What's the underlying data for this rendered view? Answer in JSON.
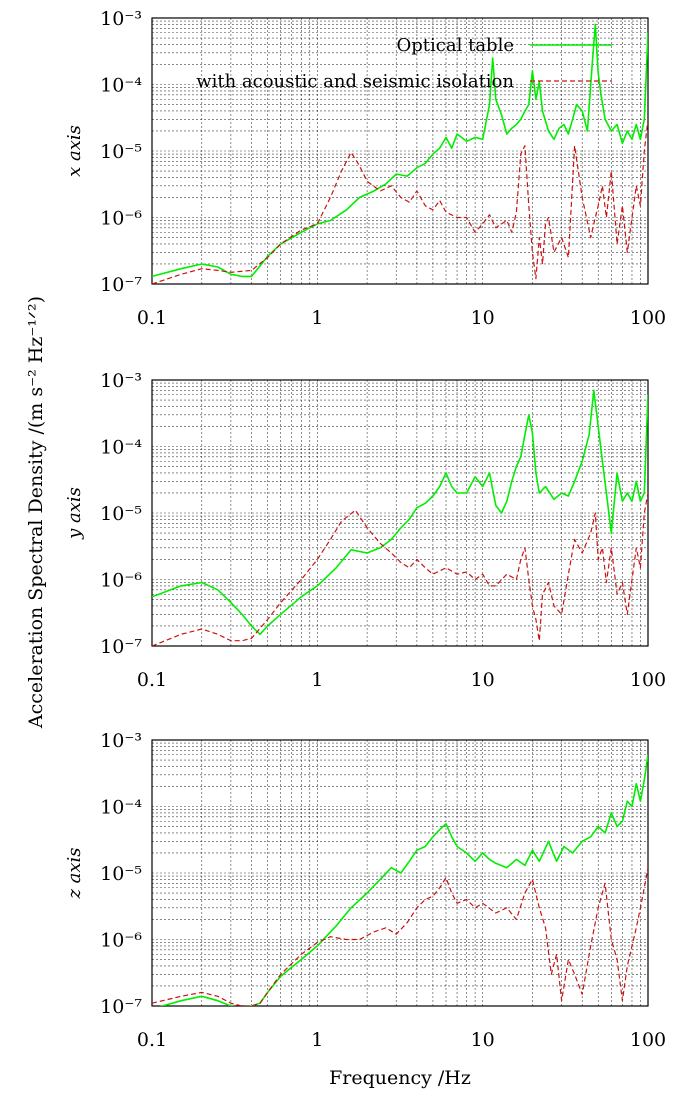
{
  "ylabel_global": "Acceleration Spectral Density /(m s⁻² Hz⁻¹ᐟ²)",
  "ylabel_global_display": "Acceleration Spectral Density /(m s⁻² Hz⁻¹ᐟ²)",
  "xlabel_global": "Frequency /Hz",
  "colors": {
    "optical": "#00ee00",
    "isolation": "#cc1111",
    "grid": "#000000"
  },
  "chart_data": [
    {
      "type": "line",
      "panel_label": "x axis",
      "xscale": "log",
      "yscale": "log",
      "xlim": [
        0.1,
        100
      ],
      "ylim": [
        1e-07,
        0.001
      ],
      "x_ticks": [
        "0.1",
        "1",
        "10",
        "100"
      ],
      "y_ticks": [
        "10⁻⁷",
        "10⁻⁶",
        "10⁻⁵",
        "10⁻⁴",
        "10⁻³"
      ],
      "grid": true,
      "legend_position": "top-right",
      "series": [
        {
          "name": "Optical table",
          "style": "solid",
          "x": [
            0.1,
            0.15,
            0.2,
            0.25,
            0.3,
            0.35,
            0.4,
            0.5,
            0.6,
            0.8,
            1.0,
            1.2,
            1.5,
            1.8,
            2.2,
            2.6,
            3.0,
            3.5,
            4.0,
            4.5,
            5.0,
            5.5,
            6.0,
            6.5,
            7.0,
            8.0,
            9.0,
            10.0,
            11.0,
            11.5,
            12.0,
            13.0,
            14.0,
            15.0,
            16.0,
            17.0,
            18.0,
            19.0,
            20.0,
            21.0,
            22.0,
            23.0,
            25.0,
            27.0,
            29.0,
            31.0,
            33.0,
            35.0,
            37.0,
            40.0,
            43.0,
            46.0,
            48.0,
            50.0,
            52.0,
            55.0,
            60.0,
            65.0,
            70.0,
            75.0,
            80.0,
            85.0,
            90.0,
            95.0,
            100.0
          ],
          "y": [
            1.3e-07,
            1.7e-07,
            2e-07,
            1.8e-07,
            1.4e-07,
            1.3e-07,
            1.3e-07,
            2.6e-07,
            4e-07,
            6e-07,
            8e-07,
            9e-07,
            1.3e-06,
            2e-06,
            2.5e-06,
            3.2e-06,
            4.5e-06,
            4.2e-06,
            5.6e-06,
            6.5e-06,
            9e-06,
            1.1e-05,
            1.6e-05,
            1.1e-05,
            1.8e-05,
            1.4e-05,
            1.6e-05,
            1.5e-05,
            5e-05,
            0.00025,
            6e-05,
            3.5e-05,
            1.8e-05,
            2.2e-05,
            2.5e-05,
            3e-05,
            4e-05,
            5e-05,
            0.00016,
            6e-05,
            0.00011,
            4e-05,
            2e-05,
            1.5e-05,
            2.2e-05,
            2.5e-05,
            1.8e-05,
            3e-05,
            5e-05,
            4e-05,
            2e-05,
            0.0002,
            0.0008,
            0.00015,
            7e-05,
            3e-05,
            2e-05,
            2.5e-05,
            1.3e-05,
            2e-05,
            1.5e-05,
            2.5e-05,
            1.5e-05,
            3e-05,
            0.0006
          ]
        },
        {
          "name": "with acoustic and seismic isolation",
          "style": "dashed",
          "x": [
            0.1,
            0.15,
            0.2,
            0.25,
            0.3,
            0.4,
            0.5,
            0.6,
            0.8,
            1.0,
            1.2,
            1.4,
            1.6,
            1.8,
            2.0,
            2.4,
            2.8,
            3.2,
            3.6,
            4.0,
            4.5,
            5.0,
            5.5,
            6.0,
            7.0,
            8.0,
            9.0,
            10.0,
            11.0,
            12.0,
            13.0,
            14.0,
            15.0,
            16.0,
            17.0,
            18.0,
            19.0,
            20.0,
            21.0,
            22.0,
            23.0,
            24.0,
            25.0,
            27.0,
            30.0,
            33.0,
            36.0,
            40.0,
            45.0,
            48.0,
            50.0,
            53.0,
            56.0,
            60.0,
            65.0,
            70.0,
            75.0,
            80.0,
            85.0,
            90.0,
            95.0,
            100.0
          ],
          "y": [
            1e-07,
            1.4e-07,
            1.7e-07,
            1.6e-07,
            1.5e-07,
            1.6e-07,
            2.5e-07,
            4e-07,
            6.5e-07,
            8e-07,
            2e-06,
            5e-06,
            9.5e-06,
            6e-06,
            3.5e-06,
            2.5e-06,
            3e-06,
            2e-06,
            1.7e-06,
            2.5e-06,
            1.5e-06,
            1.3e-06,
            1.8e-06,
            1.2e-06,
            1e-06,
            1e-06,
            6e-07,
            8e-07,
            1.1e-06,
            7e-07,
            8e-07,
            9e-07,
            6e-07,
            1.2e-06,
            9e-06,
            1.2e-05,
            1.5e-06,
            3e-07,
            1.2e-07,
            5e-07,
            2e-07,
            8e-07,
            1e-06,
            3e-07,
            5e-07,
            2.5e-07,
            1.2e-05,
            2e-06,
            5e-07,
            1e-06,
            1.5e-06,
            3e-06,
            1e-06,
            5e-06,
            4e-07,
            1.5e-06,
            3e-07,
            1e-06,
            3e-06,
            1.5e-06,
            1e-05,
            3e-05
          ]
        }
      ]
    },
    {
      "type": "line",
      "panel_label": "y axis",
      "xscale": "log",
      "yscale": "log",
      "xlim": [
        0.1,
        100
      ],
      "ylim": [
        1e-07,
        0.001
      ],
      "x_ticks": [
        "0.1",
        "1",
        "10",
        "100"
      ],
      "y_ticks": [
        "10⁻⁷",
        "10⁻⁶",
        "10⁻⁵",
        "10⁻⁴",
        "10⁻³"
      ],
      "grid": true,
      "series": [
        {
          "name": "Optical table",
          "style": "solid",
          "x": [
            0.1,
            0.15,
            0.2,
            0.25,
            0.3,
            0.35,
            0.4,
            0.45,
            0.5,
            0.6,
            0.8,
            1.0,
            1.3,
            1.6,
            2.0,
            2.4,
            2.8,
            3.2,
            3.6,
            4.0,
            4.5,
            5.0,
            5.5,
            6.0,
            6.5,
            7.0,
            8.0,
            9.0,
            10.0,
            11.0,
            12.0,
            13.0,
            14.0,
            15.0,
            16.0,
            17.0,
            18.0,
            19.0,
            20.0,
            21.0,
            22.0,
            24.0,
            27.0,
            30.0,
            33.0,
            36.0,
            40.0,
            44.0,
            47.0,
            50.0,
            53.0,
            56.0,
            60.0,
            65.0,
            70.0,
            75.0,
            80.0,
            85.0,
            90.0,
            95.0,
            100.0
          ],
          "y": [
            5.5e-07,
            8e-07,
            9e-07,
            7e-07,
            4.5e-07,
            3e-07,
            2e-07,
            1.5e-07,
            2e-07,
            3e-07,
            5.5e-07,
            8e-07,
            1.5e-06,
            2.8e-06,
            2.5e-06,
            3e-06,
            4e-06,
            6e-06,
            8e-06,
            1.2e-05,
            1.4e-05,
            1.8e-05,
            2.5e-05,
            4e-05,
            2.5e-05,
            2e-05,
            2e-05,
            3.5e-05,
            2.5e-05,
            4e-05,
            1.3e-05,
            1e-05,
            1.5e-05,
            3e-05,
            5e-05,
            7e-05,
            0.00015,
            0.0003,
            0.00016,
            4e-05,
            2e-05,
            2.5e-05,
            1.6e-05,
            2e-05,
            1.8e-05,
            3e-05,
            6e-05,
            0.00015,
            0.0007,
            0.0002,
            6e-05,
            2e-05,
            5e-06,
            4e-05,
            1.5e-05,
            2e-05,
            1.5e-05,
            3e-05,
            1.5e-05,
            2e-05,
            0.0006
          ]
        },
        {
          "name": "with acoustic and seismic isolation",
          "style": "dashed",
          "x": [
            0.1,
            0.15,
            0.2,
            0.25,
            0.3,
            0.35,
            0.4,
            0.5,
            0.6,
            0.8,
            1.0,
            1.2,
            1.4,
            1.7,
            2.0,
            2.4,
            2.8,
            3.2,
            3.6,
            4.0,
            4.5,
            5.0,
            6.0,
            7.0,
            8.0,
            9.0,
            10.0,
            11.0,
            12.0,
            14.0,
            16.0,
            17.0,
            18.0,
            19.0,
            20.0,
            21.0,
            22.0,
            23.0,
            25.0,
            27.0,
            30.0,
            33.0,
            36.0,
            40.0,
            45.0,
            48.0,
            50.0,
            53.0,
            56.0,
            60.0,
            65.0,
            70.0,
            75.0,
            80.0,
            85.0,
            90.0,
            95.0,
            100.0
          ],
          "y": [
            1e-07,
            1.5e-07,
            1.8e-07,
            1.5e-07,
            1.2e-07,
            1.2e-07,
            1.3e-07,
            2.5e-07,
            4.5e-07,
            1e-06,
            2e-06,
            4e-06,
            7.5e-06,
            1.1e-05,
            6e-06,
            3.5e-06,
            2.5e-06,
            1.8e-06,
            1.5e-06,
            2e-06,
            1.5e-06,
            1.2e-06,
            1.5e-06,
            1.2e-06,
            1.3e-06,
            1e-06,
            1.2e-06,
            8e-07,
            8e-07,
            1.2e-06,
            1e-06,
            2e-06,
            3e-06,
            1e-06,
            4e-07,
            2.5e-07,
            1.2e-07,
            6e-07,
            9e-07,
            4e-07,
            3e-07,
            1.2e-06,
            4e-06,
            2.5e-06,
            5e-06,
            1e-05,
            2e-06,
            3e-06,
            9e-07,
            3e-06,
            6e-07,
            9e-07,
            3e-07,
            1e-06,
            3e-06,
            1.5e-06,
            1e-05,
            2e-05
          ]
        }
      ]
    },
    {
      "type": "line",
      "panel_label": "z axis",
      "xscale": "log",
      "yscale": "log",
      "xlim": [
        0.1,
        100
      ],
      "ylim": [
        1e-07,
        0.001
      ],
      "x_ticks": [
        "0.1",
        "1",
        "10",
        "100"
      ],
      "y_ticks": [
        "10⁻⁷",
        "10⁻⁶",
        "10⁻⁵",
        "10⁻⁴",
        "10⁻³"
      ],
      "grid": true,
      "series": [
        {
          "name": "Optical table",
          "style": "solid",
          "x": [
            0.1,
            0.15,
            0.2,
            0.25,
            0.3,
            0.35,
            0.4,
            0.45,
            0.5,
            0.6,
            0.8,
            1.0,
            1.3,
            1.6,
            2.0,
            2.4,
            2.8,
            3.2,
            3.6,
            4.0,
            4.5,
            5.0,
            5.5,
            6.0,
            6.5,
            7.0,
            8.0,
            9.0,
            10.0,
            11.0,
            12.0,
            14.0,
            16.0,
            18.0,
            20.0,
            22.0,
            25.0,
            28.0,
            31.0,
            35.0,
            40.0,
            45.0,
            50.0,
            55.0,
            60.0,
            65.0,
            70.0,
            75.0,
            80.0,
            85.0,
            90.0,
            95.0,
            100.0
          ],
          "y": [
            9e-08,
            1.2e-07,
            1.4e-07,
            1.2e-07,
            1e-07,
            9e-08,
            1e-07,
            1.1e-07,
            1.6e-07,
            2.8e-07,
            5e-07,
            8e-07,
            1.6e-06,
            3e-06,
            5e-06,
            8e-06,
            1.2e-05,
            1e-05,
            1.5e-05,
            2.2e-05,
            2.5e-05,
            3.5e-05,
            4.5e-05,
            5.5e-05,
            3.5e-05,
            2.5e-05,
            2e-05,
            1.5e-05,
            2e-05,
            1.6e-05,
            1.4e-05,
            1.2e-05,
            1.6e-05,
            1.3e-05,
            2.2e-05,
            1.5e-05,
            3e-05,
            1.5e-05,
            2.5e-05,
            2e-05,
            3e-05,
            3.5e-05,
            5e-05,
            4e-05,
            8e-05,
            5e-05,
            6e-05,
            0.00012,
            0.0001,
            0.00022,
            0.00012,
            0.00025,
            0.0006
          ]
        },
        {
          "name": "with acoustic and seismic isolation",
          "style": "dashed",
          "x": [
            0.1,
            0.15,
            0.2,
            0.25,
            0.3,
            0.35,
            0.4,
            0.45,
            0.5,
            0.6,
            0.8,
            1.0,
            1.2,
            1.5,
            1.8,
            2.2,
            2.6,
            3.0,
            3.5,
            4.0,
            4.5,
            5.0,
            5.5,
            6.0,
            6.5,
            7.0,
            8.0,
            9.0,
            10.0,
            12.0,
            14.0,
            16.0,
            18.0,
            20.0,
            22.0,
            24.0,
            26.0,
            28.0,
            30.0,
            33.0,
            36.0,
            40.0,
            45.0,
            50.0,
            55.0,
            60.0,
            65.0,
            70.0,
            75.0,
            80.0,
            85.0,
            90.0,
            95.0,
            100.0
          ],
          "y": [
            1.1e-07,
            1.4e-07,
            1.6e-07,
            1.4e-07,
            1.1e-07,
            1e-07,
            1e-07,
            1.1e-07,
            1.6e-07,
            3e-07,
            6e-07,
            9e-07,
            1.1e-06,
            1e-06,
            1e-06,
            1.3e-06,
            1.5e-06,
            1.2e-06,
            1.8e-06,
            3e-06,
            4e-06,
            4.5e-06,
            6e-06,
            8.5e-06,
            5e-06,
            3.5e-06,
            4e-06,
            3e-06,
            3.5e-06,
            2.5e-06,
            3e-06,
            2e-06,
            5e-06,
            8e-06,
            3e-06,
            1.5e-06,
            3e-07,
            6e-07,
            1.2e-07,
            5e-07,
            3e-07,
            1.5e-07,
            8e-07,
            3e-06,
            7e-06,
            1e-06,
            5e-07,
            1.2e-07,
            4e-07,
            8e-07,
            1.5e-06,
            3e-06,
            6e-06,
            1.2e-05
          ]
        }
      ]
    }
  ]
}
